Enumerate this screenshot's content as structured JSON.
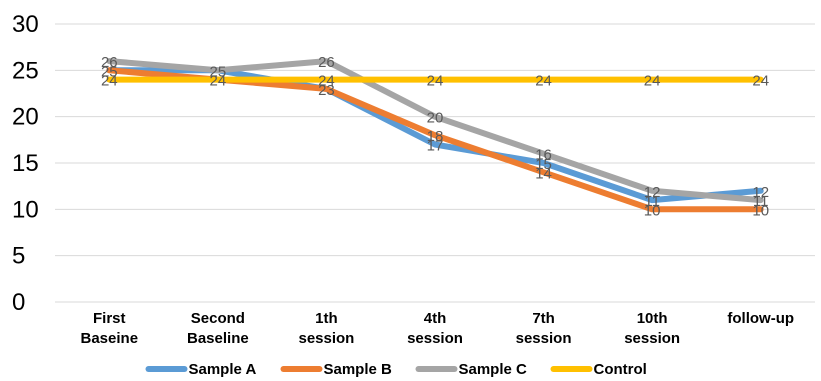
{
  "chart_data": {
    "type": "line",
    "categories": [
      [
        "First",
        "Baseine"
      ],
      [
        "Second",
        "Baseline"
      ],
      [
        "1th",
        "session"
      ],
      [
        "4th",
        "session"
      ],
      [
        "7th",
        "session"
      ],
      [
        "10th",
        "session"
      ],
      [
        "follow-up"
      ]
    ],
    "ylim": [
      0,
      30
    ],
    "yticks": [
      0,
      5,
      10,
      15,
      20,
      25,
      30
    ],
    "grid": true,
    "legend_position": "bottom",
    "series": [
      {
        "name": "Sample A",
        "color": "#5B9BD5",
        "values": [
          25,
          25,
          23,
          17,
          15,
          11,
          12
        ]
      },
      {
        "name": "Sample B",
        "color": "#ED7D31",
        "values": [
          25,
          24,
          23,
          18,
          14,
          10,
          10
        ]
      },
      {
        "name": "Sample C",
        "color": "#A5A5A5",
        "values": [
          26,
          25,
          26,
          20,
          16,
          12,
          11
        ]
      },
      {
        "name": "Control",
        "color": "#FFC000",
        "values": [
          24,
          24,
          24,
          24,
          24,
          24,
          24
        ]
      }
    ],
    "data_labels": [
      {
        "series": 2,
        "index": 0,
        "text": "26"
      },
      {
        "series": 0,
        "index": 0,
        "text": "25"
      },
      {
        "series": 3,
        "index": 0,
        "text": "24"
      },
      {
        "series": 2,
        "index": 1,
        "text": "25"
      },
      {
        "series": 1,
        "index": 1,
        "text": "24"
      },
      {
        "series": 2,
        "index": 2,
        "text": "26"
      },
      {
        "series": 3,
        "index": 2,
        "text": "24"
      },
      {
        "series": 1,
        "index": 2,
        "text": "23"
      },
      {
        "series": 3,
        "index": 3,
        "text": "24"
      },
      {
        "series": 2,
        "index": 3,
        "text": "20"
      },
      {
        "series": 1,
        "index": 3,
        "text": "18"
      },
      {
        "series": 0,
        "index": 3,
        "text": "17"
      },
      {
        "series": 3,
        "index": 4,
        "text": "24"
      },
      {
        "series": 2,
        "index": 4,
        "text": "16"
      },
      {
        "series": 0,
        "index": 4,
        "text": "15"
      },
      {
        "series": 1,
        "index": 4,
        "text": "14"
      },
      {
        "series": 3,
        "index": 5,
        "text": "24"
      },
      {
        "series": 2,
        "index": 5,
        "text": "12"
      },
      {
        "series": 0,
        "index": 5,
        "text": "11"
      },
      {
        "series": 1,
        "index": 5,
        "text": "10"
      },
      {
        "series": 3,
        "index": 6,
        "text": "24"
      },
      {
        "series": 0,
        "index": 6,
        "text": "12"
      },
      {
        "series": 2,
        "index": 6,
        "text": "11"
      },
      {
        "series": 1,
        "index": 6,
        "text": "10"
      }
    ]
  }
}
